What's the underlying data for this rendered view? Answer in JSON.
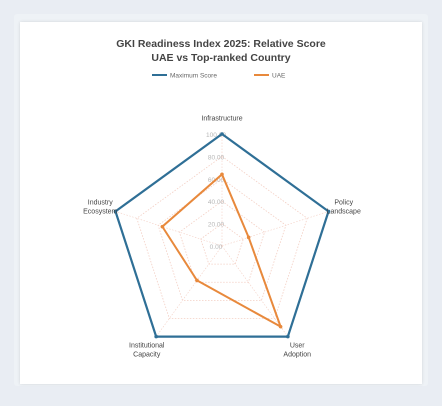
{
  "chart_data": {
    "type": "radar",
    "title": "GKI Readiness Index 2025: Relative Score",
    "subtitle": "UAE vs Top-ranked Country",
    "axes": [
      "Infrastructure",
      "Policy Landscape",
      "User Adoption",
      "Institutional Capacity",
      "Industry Ecosystem"
    ],
    "axis_labels_lines": [
      [
        "Infrastructure"
      ],
      [
        "Policy",
        "Landscape"
      ],
      [
        "User",
        "Adoption"
      ],
      [
        "Institutional",
        "Capacity"
      ],
      [
        "Industry",
        "Ecosystem"
      ]
    ],
    "tick_labels": [
      "0.00",
      "20.00",
      "40.00",
      "60.00",
      "80.00",
      "100.00"
    ],
    "rlim": [
      0,
      100
    ],
    "series": [
      {
        "name": "Maximum Score",
        "values": [
          100,
          100,
          100,
          100,
          100
        ],
        "color": "#2f6f96"
      },
      {
        "name": "UAE",
        "values": [
          64,
          25,
          89,
          38,
          56
        ],
        "color": "#e8893c"
      }
    ],
    "legend": "top-center",
    "grid": true
  },
  "colors": {
    "grid": "#f3cfc4",
    "background": "#ffffff"
  }
}
